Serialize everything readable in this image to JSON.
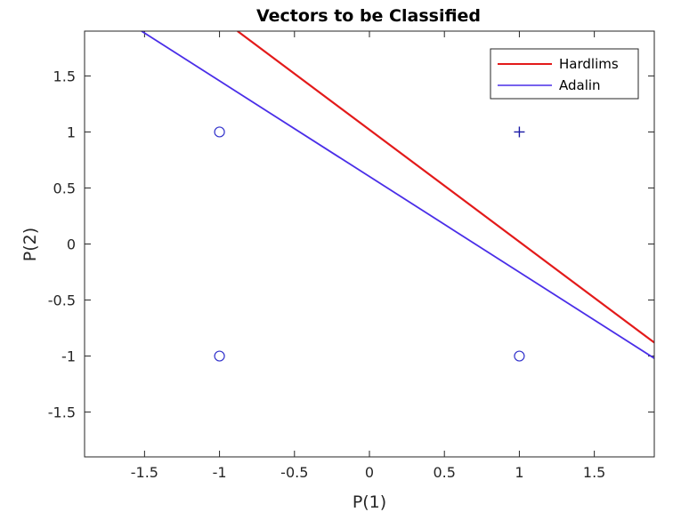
{
  "chart_data": {
    "type": "scatter",
    "title": "Vectors to be Classified",
    "xlabel": "P(1)",
    "ylabel": "P(2)",
    "xlim": [
      -1.9,
      1.9
    ],
    "ylim": [
      -1.9,
      1.9
    ],
    "xticks": [
      -1.5,
      -1,
      -0.5,
      0,
      0.5,
      1,
      1.5
    ],
    "xtick_labels": [
      "-1.5",
      "-1",
      "-0.5",
      "0",
      "0.5",
      "1",
      "1.5"
    ],
    "yticks": [
      -1.5,
      -1,
      -0.5,
      0,
      0.5,
      1,
      1.5
    ],
    "ytick_labels": [
      "-1.5",
      "-1",
      "-0.5",
      "0",
      "0.5",
      "1",
      "1.5"
    ],
    "grid": false,
    "legend": "top-right",
    "points": [
      {
        "x": -1,
        "y": 1,
        "marker": "o",
        "color": "#3333cc"
      },
      {
        "x": -1,
        "y": -1,
        "marker": "o",
        "color": "#3333cc"
      },
      {
        "x": 1,
        "y": -1,
        "marker": "o",
        "color": "#3333cc"
      },
      {
        "x": 1,
        "y": 1,
        "marker": "+",
        "color": "#1a1aa6"
      }
    ],
    "series": [
      {
        "name": "Hardlims",
        "color": "#e31a1a",
        "x": [
          -0.88,
          1.9
        ],
        "y": [
          1.9,
          -0.88
        ]
      },
      {
        "name": "Adalin",
        "color": "#4a2ee8",
        "x": [
          -1.52,
          1.9
        ],
        "y": [
          1.9,
          -1.02
        ]
      }
    ]
  }
}
